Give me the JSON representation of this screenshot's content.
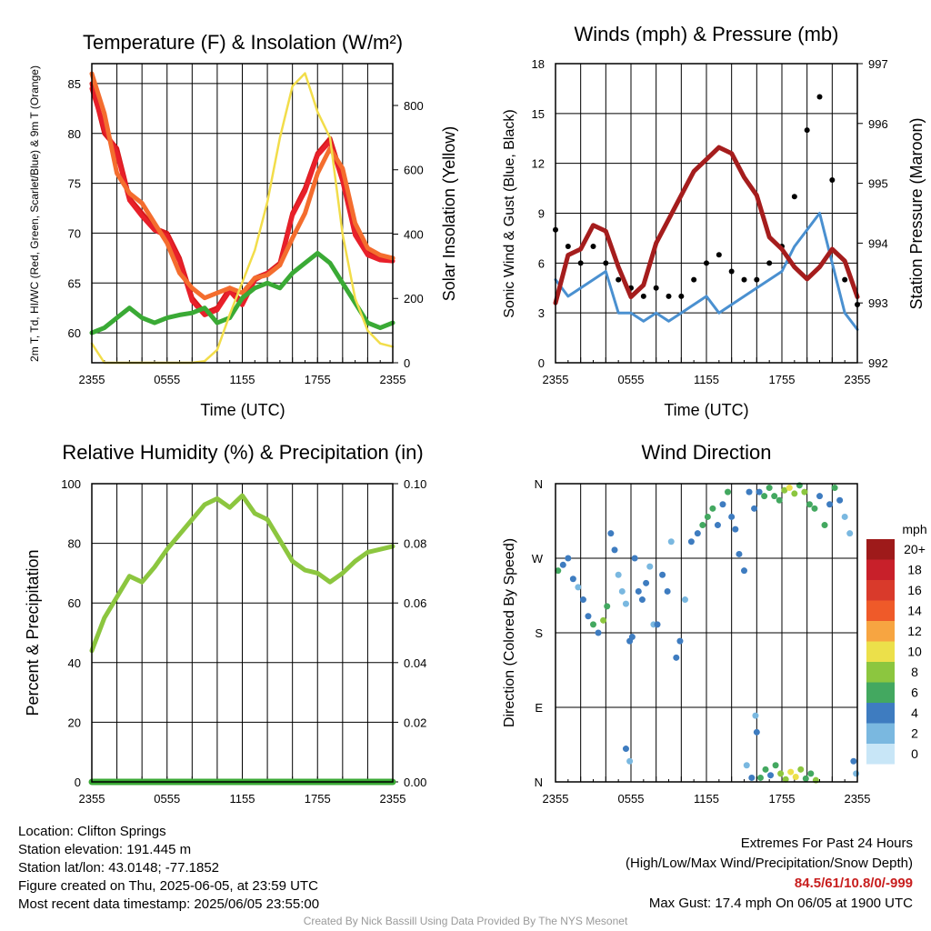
{
  "chart_data": [
    {
      "type": "line",
      "title": "Temperature (F) & Insolation (W/m²)",
      "xlabel": "Time (UTC)",
      "ylabel": "2m T, Td, HI/WC (Red, Green, Scarlet/Blue) & 9m T (Orange)",
      "y2label": "Solar Insolation (Yellow)",
      "x_ticks": [
        "2355",
        "0555",
        "1155",
        "1755",
        "2355"
      ],
      "ylim": [
        57,
        87
      ],
      "y_ticks": [
        60,
        65,
        70,
        75,
        80,
        85
      ],
      "y2lim": [
        0,
        930
      ],
      "y2_ticks": [
        0,
        200,
        400,
        600,
        800
      ],
      "grid": true,
      "series": [
        {
          "name": "2m T (Red)",
          "color": "#d7191c",
          "axis": "left",
          "x": [
            0,
            1,
            2,
            3,
            4,
            5,
            6,
            7,
            8,
            9,
            10,
            11,
            12,
            13,
            14,
            15,
            16,
            17,
            18,
            19,
            20,
            21,
            22,
            23,
            24
          ],
          "values": [
            85,
            80,
            78.5,
            73.5,
            72,
            70.5,
            70,
            67.5,
            63.5,
            62,
            62.5,
            64.5,
            63,
            65.5,
            66,
            67,
            72,
            74.5,
            78,
            79.5,
            75.5,
            70,
            68,
            67.5,
            67.5
          ]
        },
        {
          "name": "HI/WC (Scarlet)",
          "color": "#e8202a",
          "axis": "left",
          "x": [
            0,
            1,
            2,
            3,
            4,
            5,
            6,
            7,
            8,
            9,
            10,
            11,
            12,
            13,
            14,
            15,
            16,
            17,
            18,
            19,
            20,
            21,
            22,
            23,
            24
          ],
          "values": [
            84.5,
            80.5,
            78,
            73.3,
            71.7,
            70.3,
            69.7,
            67.2,
            63.2,
            61.8,
            62.3,
            64.2,
            62.8,
            65.3,
            66,
            66.8,
            71.8,
            74.2,
            77.8,
            79.2,
            75.2,
            69.8,
            67.8,
            67.3,
            67.2
          ]
        },
        {
          "name": "9m T (Orange)",
          "color": "#f46d2e",
          "axis": "left",
          "x": [
            0,
            1,
            2,
            3,
            4,
            5,
            6,
            7,
            8,
            9,
            10,
            11,
            12,
            13,
            14,
            15,
            16,
            17,
            18,
            19,
            20,
            21,
            22,
            23,
            24
          ],
          "values": [
            86,
            82,
            76,
            74,
            73,
            71,
            69,
            66,
            64.5,
            63.5,
            64,
            64.5,
            64,
            65.5,
            65.8,
            66.8,
            69.5,
            72,
            76,
            78.5,
            76.5,
            71,
            68.5,
            67.8,
            67.5
          ]
        },
        {
          "name": "Td (Green)",
          "color": "#3aaa35",
          "axis": "left",
          "x": [
            0,
            1,
            2,
            3,
            4,
            5,
            6,
            7,
            8,
            9,
            10,
            11,
            12,
            13,
            14,
            15,
            16,
            17,
            18,
            19,
            20,
            21,
            22,
            23,
            24
          ],
          "values": [
            60,
            60.5,
            61.5,
            62.5,
            61.5,
            61,
            61.5,
            61.8,
            62,
            62.5,
            61,
            61.5,
            63.5,
            64.5,
            65,
            64.5,
            66,
            67,
            68,
            67,
            65,
            63,
            61,
            60.5,
            61
          ]
        },
        {
          "name": "Solar Insolation (Yellow)",
          "color": "#f2dd4a",
          "axis": "right",
          "x": [
            0,
            1,
            2,
            3,
            4,
            5,
            6,
            7,
            8,
            9,
            10,
            11,
            12,
            13,
            14,
            15,
            16,
            17,
            18,
            19,
            20,
            21,
            22,
            23,
            24
          ],
          "values": [
            60,
            0,
            0,
            0,
            0,
            0,
            0,
            0,
            0,
            5,
            40,
            150,
            250,
            350,
            500,
            700,
            860,
            900,
            780,
            700,
            400,
            200,
            100,
            60,
            50
          ]
        }
      ]
    },
    {
      "type": "line",
      "title": "Winds (mph) & Pressure (mb)",
      "xlabel": "Time (UTC)",
      "ylabel": "Sonic Wind & Gust (Blue, Black)",
      "y2label": "Station Pressure (Maroon)",
      "x_ticks": [
        "2355",
        "0555",
        "1155",
        "1755",
        "2355"
      ],
      "ylim": [
        0,
        18
      ],
      "y_ticks": [
        0,
        3,
        6,
        9,
        12,
        15,
        18
      ],
      "y2lim": [
        992,
        997
      ],
      "y2_ticks": [
        992,
        993,
        994,
        995,
        996,
        997
      ],
      "grid": true,
      "series": [
        {
          "name": "Sonic Wind (Blue)",
          "color": "#4a90d0",
          "axis": "left",
          "x": [
            0,
            1,
            2,
            3,
            4,
            5,
            6,
            7,
            8,
            9,
            10,
            11,
            12,
            13,
            14,
            15,
            16,
            17,
            18,
            19,
            20,
            21,
            22,
            23,
            24
          ],
          "values": [
            5,
            4,
            4.5,
            5,
            5.5,
            3,
            3,
            2.5,
            3,
            2.5,
            3,
            3.5,
            4,
            3,
            3.5,
            4,
            4.5,
            5,
            5.5,
            7,
            8,
            9,
            6,
            3,
            2
          ]
        },
        {
          "name": "Gust (Black)",
          "color": "#000000",
          "axis": "left",
          "x": [
            0,
            1,
            2,
            3,
            4,
            5,
            6,
            7,
            8,
            9,
            10,
            11,
            12,
            13,
            14,
            15,
            16,
            17,
            18,
            19,
            20,
            21,
            22,
            23,
            24
          ],
          "values": [
            8,
            7,
            6,
            7,
            6,
            5,
            4.5,
            4,
            4.5,
            4,
            4,
            5,
            6,
            6.5,
            5.5,
            5,
            5,
            6,
            7,
            10,
            14,
            16,
            11,
            5,
            3.5
          ]
        },
        {
          "name": "Station Pressure (Maroon)",
          "color": "#a51d1d",
          "axis": "right",
          "x": [
            0,
            1,
            2,
            3,
            4,
            5,
            6,
            7,
            8,
            9,
            10,
            11,
            12,
            13,
            14,
            15,
            16,
            17,
            18,
            19,
            20,
            21,
            22,
            23,
            24
          ],
          "values": [
            993,
            993.8,
            993.9,
            994.3,
            994.2,
            993.6,
            993.1,
            993.3,
            994,
            994.4,
            994.8,
            995.2,
            995.4,
            995.6,
            995.5,
            995.1,
            994.8,
            994.1,
            993.9,
            993.6,
            993.4,
            993.6,
            993.9,
            993.7,
            993.1
          ]
        }
      ]
    },
    {
      "type": "line",
      "title": "Relative Humidity (%) & Precipitation (in)",
      "xlabel": "",
      "ylabel": "Percent & Precipitation",
      "x_ticks": [
        "2355",
        "0555",
        "1155",
        "1755",
        "2355"
      ],
      "ylim": [
        0,
        100
      ],
      "y_ticks": [
        0,
        20,
        40,
        60,
        80,
        100
      ],
      "y2lim": [
        0,
        0.1
      ],
      "y2_ticks": [
        "0.00",
        "0.02",
        "0.04",
        "0.06",
        "0.08",
        "0.10"
      ],
      "grid": true,
      "series": [
        {
          "name": "Relative Humidity",
          "color": "#8cc63f",
          "axis": "left",
          "x": [
            0,
            1,
            2,
            3,
            4,
            5,
            6,
            7,
            8,
            9,
            10,
            11,
            12,
            13,
            14,
            15,
            16,
            17,
            18,
            19,
            20,
            21,
            22,
            23,
            24
          ],
          "values": [
            44,
            55,
            62,
            69,
            67,
            72,
            78,
            83,
            88,
            93,
            95,
            92,
            96,
            90,
            88,
            81,
            74,
            71,
            70,
            67,
            70,
            74,
            77,
            78,
            79
          ]
        },
        {
          "name": "Precipitation",
          "color": "#3aaa35",
          "axis": "right",
          "x": [
            0,
            24
          ],
          "values": [
            0,
            0
          ]
        }
      ]
    },
    {
      "type": "scatter",
      "title": "Wind Direction",
      "ylabel": "Direction (Colored By Speed)",
      "x_ticks": [
        "2355",
        "0555",
        "1155",
        "1755",
        "2355"
      ],
      "y_ticks": [
        "N",
        "E",
        "S",
        "W",
        "N"
      ],
      "ylim": [
        0,
        360
      ],
      "grid": true,
      "colorbar": {
        "title": "mph",
        "labels": [
          "20+",
          "18",
          "16",
          "14",
          "12",
          "10",
          "8",
          "6",
          "4",
          "2",
          "0"
        ],
        "colors": [
          "#9e1a1a",
          "#c8202a",
          "#d93a2b",
          "#ef5a29",
          "#f7a541",
          "#ece04a",
          "#8cc63f",
          "#43a860",
          "#3e7cc0",
          "#7ab8e0",
          "#c8e6f7"
        ]
      },
      "points": [
        {
          "x": 0.2,
          "dir": 255,
          "spd": 6
        },
        {
          "x": 0.6,
          "dir": 262,
          "spd": 4
        },
        {
          "x": 1.0,
          "dir": 270,
          "spd": 3
        },
        {
          "x": 1.4,
          "dir": 245,
          "spd": 3
        },
        {
          "x": 1.8,
          "dir": 235,
          "spd": 2
        },
        {
          "x": 2.2,
          "dir": 220,
          "spd": 3
        },
        {
          "x": 2.6,
          "dir": 200,
          "spd": 4
        },
        {
          "x": 3.0,
          "dir": 190,
          "spd": 5
        },
        {
          "x": 3.4,
          "dir": 180,
          "spd": 4
        },
        {
          "x": 3.8,
          "dir": 195,
          "spd": 7
        },
        {
          "x": 4.1,
          "dir": 212,
          "spd": 6
        },
        {
          "x": 4.4,
          "dir": 300,
          "spd": 3
        },
        {
          "x": 4.7,
          "dir": 280,
          "spd": 3
        },
        {
          "x": 5.0,
          "dir": 250,
          "spd": 2
        },
        {
          "x": 5.3,
          "dir": 230,
          "spd": 1
        },
        {
          "x": 5.6,
          "dir": 215,
          "spd": 2
        },
        {
          "x": 5.9,
          "dir": 170,
          "spd": 3
        },
        {
          "x": 6.1,
          "dir": 175,
          "spd": 4
        },
        {
          "x": 6.3,
          "dir": 270,
          "spd": 3
        },
        {
          "x": 6.6,
          "dir": 230,
          "spd": 3
        },
        {
          "x": 6.9,
          "dir": 220,
          "spd": 4
        },
        {
          "x": 7.2,
          "dir": 240,
          "spd": 3
        },
        {
          "x": 7.5,
          "dir": 260,
          "spd": 2
        },
        {
          "x": 7.8,
          "dir": 190,
          "spd": 2
        },
        {
          "x": 8.1,
          "dir": 190,
          "spd": 3
        },
        {
          "x": 8.5,
          "dir": 250,
          "spd": 3
        },
        {
          "x": 8.9,
          "dir": 230,
          "spd": 4
        },
        {
          "x": 9.2,
          "dir": 290,
          "spd": 2
        },
        {
          "x": 9.6,
          "dir": 150,
          "spd": 3
        },
        {
          "x": 9.9,
          "dir": 170,
          "spd": 3
        },
        {
          "x": 10.3,
          "dir": 220,
          "spd": 2
        },
        {
          "x": 10.8,
          "dir": 290,
          "spd": 3
        },
        {
          "x": 11.3,
          "dir": 300,
          "spd": 4
        },
        {
          "x": 11.7,
          "dir": 310,
          "spd": 5
        },
        {
          "x": 12.1,
          "dir": 320,
          "spd": 6
        },
        {
          "x": 12.5,
          "dir": 330,
          "spd": 5
        },
        {
          "x": 12.9,
          "dir": 310,
          "spd": 4
        },
        {
          "x": 13.3,
          "dir": 335,
          "spd": 4
        },
        {
          "x": 13.7,
          "dir": 350,
          "spd": 5
        },
        {
          "x": 14.0,
          "dir": 320,
          "spd": 4
        },
        {
          "x": 14.3,
          "dir": 305,
          "spd": 4
        },
        {
          "x": 14.6,
          "dir": 275,
          "spd": 3
        },
        {
          "x": 15.0,
          "dir": 255,
          "spd": 3
        },
        {
          "x": 15.4,
          "dir": 350,
          "spd": 3
        },
        {
          "x": 15.8,
          "dir": 330,
          "spd": 3
        },
        {
          "x": 16.2,
          "dir": 350,
          "spd": 4
        },
        {
          "x": 16.6,
          "dir": 345,
          "spd": 6
        },
        {
          "x": 17.0,
          "dir": 355,
          "spd": 5
        },
        {
          "x": 17.4,
          "dir": 345,
          "spd": 6
        },
        {
          "x": 17.8,
          "dir": 340,
          "spd": 6
        },
        {
          "x": 18.2,
          "dir": 352,
          "spd": 8
        },
        {
          "x": 18.6,
          "dir": 355,
          "spd": 10
        },
        {
          "x": 19.0,
          "dir": 348,
          "spd": 7
        },
        {
          "x": 19.4,
          "dir": 358,
          "spd": 6
        },
        {
          "x": 19.8,
          "dir": 350,
          "spd": 8
        },
        {
          "x": 20.2,
          "dir": 335,
          "spd": 6
        },
        {
          "x": 20.6,
          "dir": 330,
          "spd": 5
        },
        {
          "x": 21.0,
          "dir": 345,
          "spd": 4
        },
        {
          "x": 21.4,
          "dir": 310,
          "spd": 5
        },
        {
          "x": 21.8,
          "dir": 335,
          "spd": 4
        },
        {
          "x": 22.2,
          "dir": 355,
          "spd": 5
        },
        {
          "x": 22.6,
          "dir": 340,
          "spd": 3
        },
        {
          "x": 23.0,
          "dir": 320,
          "spd": 2
        },
        {
          "x": 23.4,
          "dir": 300,
          "spd": 2
        },
        {
          "x": 16.3,
          "dir": 5,
          "spd": 5
        },
        {
          "x": 16.7,
          "dir": 15,
          "spd": 6
        },
        {
          "x": 17.1,
          "dir": 8,
          "spd": 4
        },
        {
          "x": 17.5,
          "dir": 20,
          "spd": 5
        },
        {
          "x": 17.9,
          "dir": 10,
          "spd": 7
        },
        {
          "x": 18.3,
          "dir": 3,
          "spd": 8
        },
        {
          "x": 18.7,
          "dir": 12,
          "spd": 10
        },
        {
          "x": 19.1,
          "dir": 6,
          "spd": 9
        },
        {
          "x": 19.5,
          "dir": 15,
          "spd": 7
        },
        {
          "x": 19.9,
          "dir": 4,
          "spd": 6
        },
        {
          "x": 20.3,
          "dir": 10,
          "spd": 5
        },
        {
          "x": 20.7,
          "dir": 2,
          "spd": 8
        },
        {
          "x": 15.2,
          "dir": 20,
          "spd": 2
        },
        {
          "x": 15.6,
          "dir": 5,
          "spd": 3
        },
        {
          "x": 5.6,
          "dir": 40,
          "spd": 3
        },
        {
          "x": 5.9,
          "dir": 25,
          "spd": 2
        },
        {
          "x": 15.9,
          "dir": 80,
          "spd": 2
        },
        {
          "x": 16.0,
          "dir": 60,
          "spd": 3
        },
        {
          "x": 23.7,
          "dir": 25,
          "spd": 3
        },
        {
          "x": 23.9,
          "dir": 10,
          "spd": 2
        }
      ]
    }
  ],
  "info": {
    "location": "Location: Clifton Springs",
    "elevation": "Station elevation: 191.445 m",
    "latlon": "Station lat/lon: 43.0148; -77.1852",
    "created": "Figure created on Thu, 2025-06-05, at 23:59 UTC",
    "recent": "Most recent data timestamp: 2025/06/05 23:55:00"
  },
  "extremes": {
    "title": "Extremes For Past 24 Hours",
    "subtitle": "(High/Low/Max Wind/Precipitation/Snow Depth)",
    "values": "84.5/61/10.8/0/-999",
    "max_gust": "Max Gust: 17.4 mph On 06/05 at 1900 UTC"
  },
  "credit": "Created By Nick Bassill Using Data Provided By The NYS Mesonet"
}
